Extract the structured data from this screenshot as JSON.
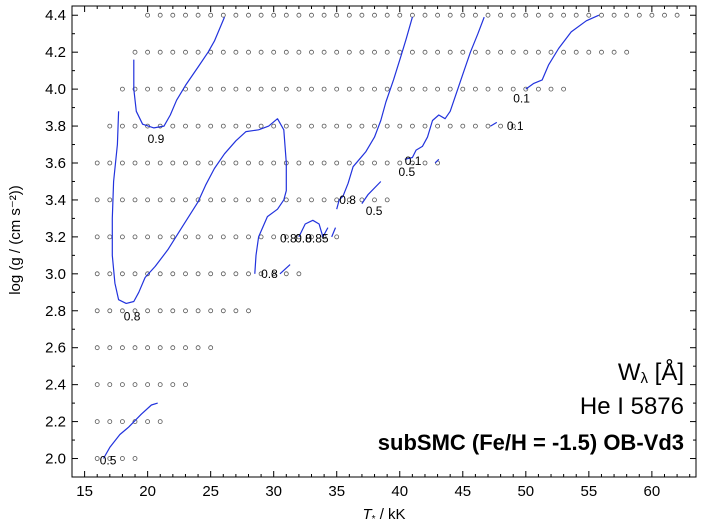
{
  "chart_data": {
    "type": "scatter",
    "xlabel_symbol": "T",
    "xlabel_sub": "*",
    "xlabel_unit": " / kK",
    "ylabel": "log (g / (cm s⁻²))",
    "xlim": [
      14,
      63.5
    ],
    "ylim": [
      1.9,
      4.45
    ],
    "xticks": [
      15,
      20,
      25,
      30,
      35,
      40,
      45,
      50,
      55,
      60
    ],
    "yticks": [
      2.0,
      2.2,
      2.4,
      2.6,
      2.8,
      3.0,
      3.2,
      3.4,
      3.6,
      3.8,
      4.0,
      4.2,
      4.4
    ],
    "ytick_labels": [
      "2.0",
      "2.2",
      "2.4",
      "2.6",
      "2.8",
      "3.0",
      "3.2",
      "3.4",
      "3.6",
      "3.8",
      "4.0",
      "4.2",
      "4.4"
    ],
    "grid": false,
    "legend": {
      "line1": "W",
      "line1_sub": "λ",
      "line1_unit": " [Å]",
      "line2": "He I 5876",
      "line3": "subSMC (Fe/H = -1.5) OB-Vd3"
    },
    "model_grid_rows": [
      {
        "logg": 4.4,
        "x_start": 20,
        "x_end": 62,
        "step": 1
      },
      {
        "logg": 4.2,
        "x_start": 19,
        "x_end": 58,
        "step": 1
      },
      {
        "logg": 4.0,
        "x_start": 18,
        "x_end": 53,
        "step": 1
      },
      {
        "logg": 3.8,
        "x_start": 17,
        "x_end": 49,
        "step": 1
      },
      {
        "logg": 3.6,
        "x_start": 16,
        "x_end": 43,
        "step": 1
      },
      {
        "logg": 3.4,
        "x_start": 16,
        "x_end": 39,
        "step": 1
      },
      {
        "logg": 3.2,
        "x_start": 16,
        "x_end": 35,
        "step": 1
      },
      {
        "logg": 3.0,
        "x_start": 16,
        "x_end": 32,
        "step": 1
      },
      {
        "logg": 2.8,
        "x_start": 16,
        "x_end": 28,
        "step": 1
      },
      {
        "logg": 2.6,
        "x_start": 16,
        "x_end": 25,
        "step": 1
      },
      {
        "logg": 2.4,
        "x_start": 16,
        "x_end": 23,
        "step": 1
      },
      {
        "logg": 2.2,
        "x_start": 16,
        "x_end": 21,
        "step": 1
      },
      {
        "logg": 2.0,
        "x_start": 16,
        "x_end": 19,
        "step": 1
      }
    ],
    "contours": [
      {
        "level": "0.5",
        "points": [
          [
            16.5,
            2.0
          ],
          [
            17,
            2.06
          ],
          [
            17.8,
            2.13
          ],
          [
            18.5,
            2.17
          ],
          [
            19.5,
            2.24
          ],
          [
            20.3,
            2.29
          ],
          [
            20.8,
            2.3
          ]
        ]
      },
      {
        "level": "0.9",
        "points": [
          [
            18.9,
            4.16
          ],
          [
            18.9,
            4.0
          ],
          [
            19.1,
            3.88
          ],
          [
            19.6,
            3.81
          ],
          [
            20.5,
            3.79
          ],
          [
            21.3,
            3.8
          ],
          [
            21.8,
            3.86
          ],
          [
            22.3,
            3.94
          ],
          [
            23.0,
            4.02
          ],
          [
            24.0,
            4.12
          ],
          [
            24.8,
            4.2
          ],
          [
            25.3,
            4.26
          ],
          [
            26.1,
            4.39
          ]
        ]
      },
      {
        "level": "0.8",
        "points": [
          [
            17.7,
            3.88
          ],
          [
            17.6,
            3.7
          ],
          [
            17.3,
            3.5
          ],
          [
            17.2,
            3.3
          ],
          [
            17.2,
            3.1
          ],
          [
            17.4,
            2.95
          ],
          [
            17.7,
            2.86
          ],
          [
            18.3,
            2.84
          ],
          [
            18.9,
            2.85
          ],
          [
            19.3,
            2.9
          ],
          [
            19.8,
            2.98
          ],
          [
            20.6,
            3.04
          ],
          [
            21.6,
            3.13
          ],
          [
            22.8,
            3.26
          ],
          [
            24.0,
            3.39
          ],
          [
            24.6,
            3.48
          ],
          [
            25.3,
            3.57
          ],
          [
            26.1,
            3.65
          ],
          [
            27.0,
            3.72
          ],
          [
            27.8,
            3.77
          ],
          [
            28.8,
            3.78
          ],
          [
            29.6,
            3.8
          ],
          [
            30.3,
            3.84
          ],
          [
            30.8,
            3.78
          ],
          [
            31.0,
            3.6
          ],
          [
            31.0,
            3.45
          ],
          [
            30.8,
            3.4
          ],
          [
            30.3,
            3.35
          ],
          [
            29.5,
            3.31
          ],
          [
            28.8,
            3.2
          ],
          [
            28.6,
            3.1
          ],
          [
            28.5,
            3.0
          ]
        ]
      },
      {
        "level": "0.8",
        "points": [
          [
            30.5,
            3.0
          ],
          [
            31.3,
            3.05
          ]
        ]
      },
      {
        "level": "0.8",
        "points": [
          [
            32.0,
            3.2
          ],
          [
            32.5,
            3.27
          ],
          [
            33.1,
            3.29
          ],
          [
            33.6,
            3.27
          ],
          [
            33.9,
            3.2
          ],
          [
            34.3,
            3.25
          ]
        ]
      },
      {
        "level": "0.85",
        "points": [
          [
            34.6,
            3.2
          ],
          [
            34.9,
            3.25
          ]
        ]
      },
      {
        "level": "0.8",
        "points": [
          [
            35.0,
            3.35
          ],
          [
            35.2,
            3.4
          ],
          [
            35.5,
            3.42
          ],
          [
            35.9,
            3.49
          ],
          [
            36.3,
            3.58
          ],
          [
            36.8,
            3.62
          ],
          [
            37.3,
            3.66
          ],
          [
            38.0,
            3.74
          ],
          [
            38.5,
            3.83
          ],
          [
            38.9,
            3.93
          ],
          [
            39.5,
            4.05
          ],
          [
            40.1,
            4.18
          ],
          [
            40.5,
            4.27
          ],
          [
            41.0,
            4.39
          ]
        ]
      },
      {
        "level": "0.5",
        "points": [
          [
            37.0,
            3.38
          ],
          [
            37.5,
            3.43
          ],
          [
            38.5,
            3.5
          ]
        ]
      },
      {
        "level": "0.5",
        "points": [
          [
            40.4,
            3.62
          ],
          [
            41.0,
            3.63
          ],
          [
            41.3,
            3.67
          ],
          [
            41.8,
            3.69
          ],
          [
            42.2,
            3.74
          ],
          [
            42.6,
            3.83
          ],
          [
            43.1,
            3.86
          ],
          [
            43.6,
            3.84
          ],
          [
            44.0,
            3.88
          ],
          [
            44.5,
            3.98
          ],
          [
            45.0,
            4.08
          ],
          [
            45.6,
            4.2
          ],
          [
            46.2,
            4.3
          ],
          [
            46.7,
            4.39
          ]
        ]
      },
      {
        "level": "0.1",
        "points": [
          [
            42.8,
            3.6
          ],
          [
            43.1,
            3.62
          ]
        ]
      },
      {
        "level": "0.1",
        "points": [
          [
            47.2,
            3.8
          ],
          [
            47.7,
            3.82
          ]
        ]
      },
      {
        "level": "0.1",
        "points": [
          [
            50.0,
            4.0
          ],
          [
            50.6,
            4.03
          ],
          [
            51.3,
            4.05
          ],
          [
            51.8,
            4.13
          ],
          [
            52.6,
            4.22
          ],
          [
            53.6,
            4.31
          ],
          [
            54.8,
            4.37
          ],
          [
            55.8,
            4.4
          ]
        ]
      }
    ],
    "contour_labels": [
      {
        "text": "0.9",
        "x": 20.0,
        "y": 3.73
      },
      {
        "text": "0.8",
        "x": 18.1,
        "y": 2.77
      },
      {
        "text": "0.5",
        "x": 16.2,
        "y": 1.99
      },
      {
        "text": "0.8",
        "x": 29.0,
        "y": 3.0
      },
      {
        "text": "0.8",
        "x": 30.5,
        "y": 3.19
      },
      {
        "text": "0.8",
        "x": 31.7,
        "y": 3.19
      },
      {
        "text": "0.85",
        "x": 32.5,
        "y": 3.19
      },
      {
        "text": "0.8",
        "x": 35.2,
        "y": 3.4
      },
      {
        "text": "0.5",
        "x": 37.3,
        "y": 3.34
      },
      {
        "text": "0.5",
        "x": 39.9,
        "y": 3.55
      },
      {
        "text": "0.1",
        "x": 40.4,
        "y": 3.61
      },
      {
        "text": "0.1",
        "x": 49.0,
        "y": 3.95
      },
      {
        "text": "0.1",
        "x": 48.5,
        "y": 3.8
      }
    ],
    "colors": {
      "contour": "#2233dd",
      "grid_point": "#555555",
      "axis": "#000000"
    }
  }
}
